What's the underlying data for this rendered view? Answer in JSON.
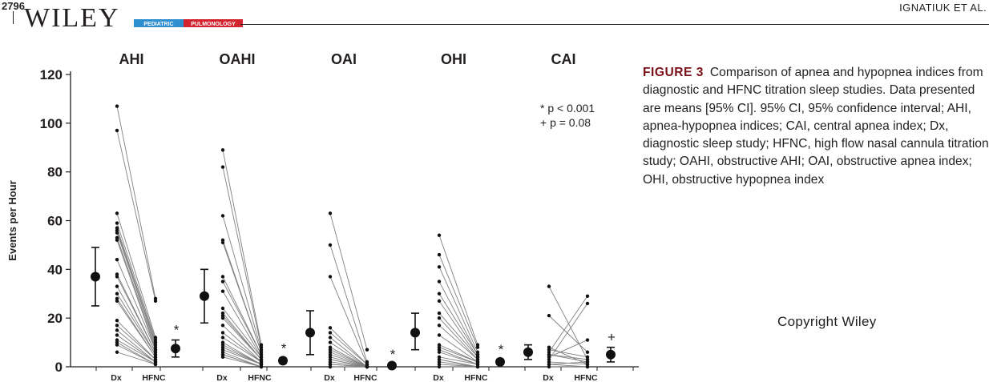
{
  "header": {
    "page_number": "2796",
    "publisher": "WILEY",
    "journal_badge_left": "PEDIATRIC",
    "journal_badge_right": "PULMONOLOGY",
    "authors": "IGNATIUK ET AL."
  },
  "figure": {
    "label": "FIGURE 3",
    "caption": "Comparison of apnea and hypopnea indices from diagnostic and HFNC titration sleep studies. Data presented are means [95% CI]. 95% CI, 95% confidence interval; AHI, apnea-hypopnea indices; CAI, central apnea index; Dx, diagnostic sleep study; HFNC, high flow nasal cannula titration study; OAHI, obstructive AHI; OAI, obstructive apnea index; OHI, obstructive hypopnea index",
    "copyright": "Copyright  Wiley"
  },
  "chart_data": {
    "type": "scatter",
    "ylabel": "Events per Hour",
    "ylim": [
      0,
      120
    ],
    "yticks": [
      0,
      20,
      40,
      60,
      80,
      100,
      120
    ],
    "x_tick_labels": [
      "Dx",
      "HFNC"
    ],
    "legend": [
      "* p < 0.001",
      "+ p = 0.08"
    ],
    "legend_position": "top-right",
    "panels": [
      {
        "name": "AHI",
        "dx": [
          107,
          97,
          63,
          59,
          57,
          56,
          55,
          53,
          52,
          44,
          38,
          37,
          33,
          30,
          28,
          27,
          19,
          17,
          15,
          13,
          11,
          10,
          9,
          6
        ],
        "hfnc": [
          28,
          27,
          12,
          11,
          10,
          10,
          9,
          8,
          7,
          7,
          6,
          6,
          5,
          5,
          4,
          4,
          3,
          3,
          2,
          2,
          2,
          1,
          1,
          1
        ],
        "mean": 37,
        "ci": [
          25,
          49
        ],
        "marker": "*",
        "hfnc_mean": 7.5,
        "hfnc_ci": [
          4,
          11
        ]
      },
      {
        "name": "OAHI",
        "dx": [
          89,
          82,
          62,
          52,
          51,
          37,
          35,
          31,
          24,
          22,
          21,
          20,
          17,
          14,
          12,
          10,
          9,
          8,
          7,
          6,
          5,
          5,
          4
        ],
        "hfnc": [
          9,
          8,
          7,
          6,
          6,
          5,
          5,
          4,
          4,
          3,
          3,
          3,
          2,
          2,
          2,
          1,
          1,
          1,
          1,
          0,
          0,
          0,
          0
        ],
        "mean": 29,
        "ci": [
          18,
          40
        ],
        "marker": "*",
        "hfnc_mean": 2.5,
        "hfnc_ci": [
          1.5,
          3.5
        ]
      },
      {
        "name": "OAI",
        "dx": [
          63,
          50,
          37,
          16,
          14,
          12,
          10,
          8,
          7,
          6,
          5,
          4,
          3,
          2,
          1,
          1,
          0,
          0
        ],
        "hfnc": [
          7,
          2,
          1,
          1,
          1,
          0,
          0,
          0,
          0,
          0,
          0,
          0,
          0,
          0,
          0,
          0,
          0,
          0
        ],
        "mean": 14,
        "ci": [
          5,
          23
        ],
        "marker": "*",
        "hfnc_mean": 0.5,
        "hfnc_ci": [
          0,
          1
        ]
      },
      {
        "name": "OHI",
        "dx": [
          54,
          46,
          41,
          35,
          30,
          27,
          22,
          20,
          17,
          13,
          9,
          8,
          7,
          6,
          4,
          3,
          2,
          1,
          0
        ],
        "hfnc": [
          9,
          8,
          6,
          5,
          5,
          4,
          4,
          3,
          3,
          2,
          2,
          2,
          1,
          1,
          1,
          0,
          0,
          0,
          0
        ],
        "mean": 14,
        "ci": [
          7,
          22
        ],
        "marker": "*",
        "hfnc_mean": 2,
        "hfnc_ci": [
          1,
          3
        ]
      },
      {
        "name": "CAI",
        "dx": [
          33,
          21,
          8,
          7,
          6,
          5,
          5,
          4,
          3,
          2,
          1,
          1,
          0
        ],
        "hfnc": [
          3,
          6,
          1,
          4,
          29,
          2,
          3,
          11,
          26,
          1,
          2,
          0,
          0
        ],
        "mean": 6,
        "ci": [
          3,
          9
        ],
        "marker": "+",
        "hfnc_mean": 5,
        "hfnc_ci": [
          2,
          8
        ]
      }
    ]
  }
}
